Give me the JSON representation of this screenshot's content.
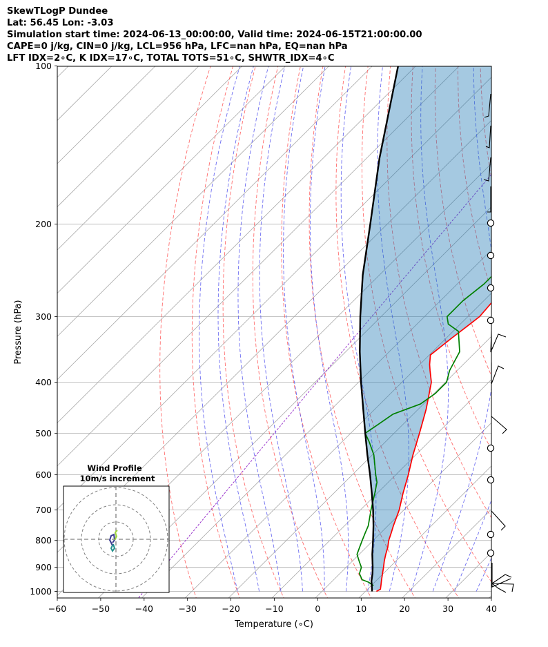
{
  "header": {
    "line1": "SkewTLogP Dundee",
    "line2": "Lat: 56.45   Lon: -3.03",
    "line3": "Simulation start time: 2024-06-13_00:00:00, Valid time: 2024-06-15T21:00:00.00",
    "line4": "CAPE=0 j/kg, CIN=0 j/kg, LCL=956 hPa, LFC=nan hPa, EQ=nan hPa",
    "line5": "LFT IDX=2∘C, K IDX=17∘C, TOTAL TOTS=51∘C, SHWTR_IDX=4∘C"
  },
  "chart_data": {
    "type": "line",
    "subtype": "skew-T log-P",
    "xlabel": "Temperature (∘C)",
    "ylabel": "Pressure (hPa)",
    "xlim": [
      -60,
      40
    ],
    "ylim_hpa": [
      1040,
      100
    ],
    "y_scale": "log",
    "grid": true,
    "x_ticks": [
      "−60",
      "−50",
      "−40",
      "−30",
      "−20",
      "−10",
      "0",
      "10",
      "20",
      "30",
      "40"
    ],
    "y_ticks": [
      "100",
      "200",
      "300",
      "400",
      "500",
      "600",
      "700",
      "800",
      "900",
      "1000"
    ],
    "series": [
      {
        "key": "temperature",
        "color": "#ff0000",
        "points": [
          [
            1000,
            12
          ],
          [
            990,
            12.4
          ],
          [
            975,
            11.7
          ],
          [
            950,
            10.5
          ],
          [
            925,
            9.3
          ],
          [
            900,
            8.1
          ],
          [
            875,
            6.8
          ],
          [
            850,
            5.6
          ],
          [
            825,
            4.5
          ],
          [
            800,
            3.1
          ],
          [
            775,
            2.0
          ],
          [
            750,
            0.8
          ],
          [
            700,
            -1.5
          ],
          [
            650,
            -4.5
          ],
          [
            600,
            -7.5
          ],
          [
            550,
            -11
          ],
          [
            500,
            -14.5
          ],
          [
            450,
            -18.5
          ],
          [
            400,
            -23.5
          ],
          [
            380,
            -26.5
          ],
          [
            370,
            -28
          ],
          [
            355,
            -30
          ],
          [
            330,
            -29
          ],
          [
            310,
            -28
          ],
          [
            300,
            -27.5
          ],
          [
            280,
            -28
          ],
          [
            260,
            -29
          ],
          [
            250,
            -30
          ],
          [
            230,
            -33
          ],
          [
            200,
            -38
          ],
          [
            190,
            -40
          ],
          [
            180,
            -43
          ],
          [
            170,
            -45
          ],
          [
            160,
            -47
          ],
          [
            150,
            -49
          ],
          [
            140,
            -52
          ],
          [
            130,
            -54
          ],
          [
            120,
            -57
          ],
          [
            110,
            -60
          ],
          [
            100,
            -63
          ]
        ]
      },
      {
        "key": "dewpoint",
        "color": "#008000",
        "points": [
          [
            975,
            10
          ],
          [
            960,
            8
          ],
          [
            950,
            6
          ],
          [
            925,
            4
          ],
          [
            900,
            3
          ],
          [
            875,
            1
          ],
          [
            850,
            -1
          ],
          [
            825,
            -2
          ],
          [
            800,
            -3
          ],
          [
            775,
            -4
          ],
          [
            750,
            -5
          ],
          [
            700,
            -8
          ],
          [
            650,
            -11
          ],
          [
            620,
            -13
          ],
          [
            600,
            -15
          ],
          [
            550,
            -20
          ],
          [
            520,
            -24
          ],
          [
            500,
            -27
          ],
          [
            480,
            -26
          ],
          [
            460,
            -25
          ],
          [
            440,
            -21
          ],
          [
            420,
            -20
          ],
          [
            400,
            -20
          ],
          [
            380,
            -22
          ],
          [
            350,
            -24
          ],
          [
            320,
            -29
          ],
          [
            310,
            -33
          ],
          [
            300,
            -35
          ],
          [
            280,
            -35
          ],
          [
            260,
            -34
          ],
          [
            240,
            -34
          ],
          [
            220,
            -36
          ],
          [
            200,
            -38
          ],
          [
            190,
            -39
          ],
          [
            180,
            -40
          ],
          [
            170,
            -41
          ],
          [
            160,
            -42
          ],
          [
            150,
            -43
          ],
          [
            140,
            -44
          ],
          [
            130,
            -44
          ],
          [
            120,
            -45
          ],
          [
            110,
            -45
          ],
          [
            100,
            -46
          ]
        ]
      },
      {
        "key": "parcel",
        "color": "#000000",
        "points": [
          [
            1000,
            11
          ],
          [
            975,
            9.6
          ],
          [
            956,
            8.5
          ],
          [
            925,
            7.0
          ],
          [
            900,
            5.6
          ],
          [
            850,
            2.5
          ],
          [
            800,
            -0.5
          ],
          [
            750,
            -3.8
          ],
          [
            700,
            -7.5
          ],
          [
            650,
            -11.7
          ],
          [
            600,
            -16.3
          ],
          [
            550,
            -21.5
          ],
          [
            500,
            -27
          ],
          [
            450,
            -33
          ],
          [
            400,
            -39.7
          ],
          [
            350,
            -47
          ],
          [
            300,
            -55
          ],
          [
            250,
            -64
          ],
          [
            200,
            -74
          ],
          [
            150,
            -87
          ],
          [
            100,
            -104
          ]
        ]
      }
    ],
    "wind_profile": {
      "title": "Wind Profile",
      "subtitle": "10m/s increment"
    }
  }
}
